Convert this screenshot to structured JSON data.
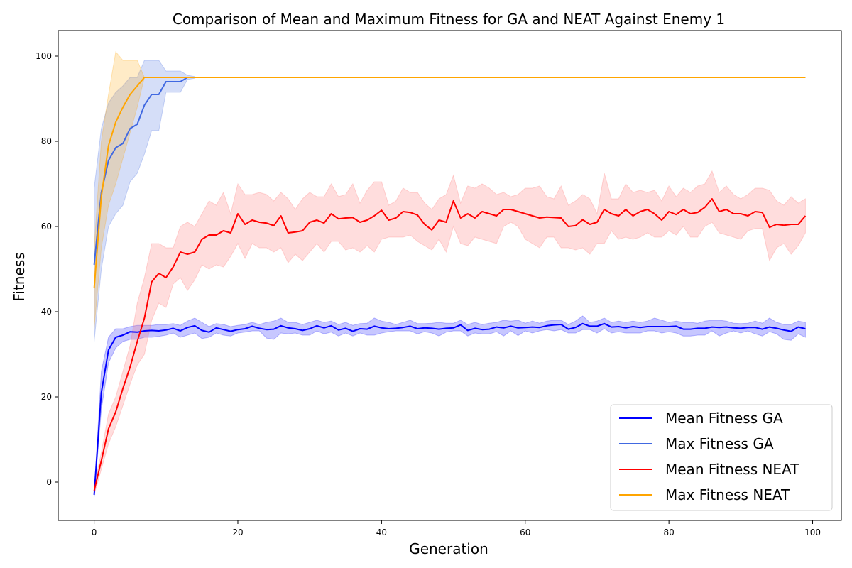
{
  "chart_data": {
    "type": "line",
    "title": "Comparison of Mean and Maximum Fitness for GA and NEAT Against Enemy 1",
    "xlabel": "Generation",
    "ylabel": "Fitness",
    "xlim": [
      -5,
      104
    ],
    "ylim": [
      -9,
      106
    ],
    "xticks": [
      0,
      20,
      40,
      60,
      80,
      100
    ],
    "yticks": [
      0,
      20,
      40,
      60,
      80,
      100
    ],
    "grid": false,
    "legend_position": "lower right",
    "series": [
      {
        "name": "Mean Fitness GA",
        "color": "#0000ff",
        "band_color": "#0000ff",
        "values": [
          -3,
          21,
          31,
          34,
          34.5,
          35.3,
          35.2,
          35.5,
          35.6,
          35.5,
          35.7,
          36.1,
          35.5,
          36.3,
          36.7,
          35.6,
          35.2,
          36.2,
          35.8,
          35.4,
          35.8,
          36,
          36.6,
          36.1,
          35.8,
          35.9,
          36.7,
          36.2,
          36,
          35.6,
          36,
          36.7,
          36.2,
          36.7,
          35.7,
          36.1,
          35.4,
          36,
          35.9,
          36.6,
          36.2,
          36,
          36.1,
          36.3,
          36.6,
          36,
          36.2,
          36.1,
          35.9,
          36.1,
          36.2,
          36.9,
          35.6,
          36.1,
          35.8,
          35.9,
          36.4,
          36.2,
          36.6,
          36.2,
          36.3,
          36.4,
          36.3,
          36.7,
          36.9,
          37,
          35.9,
          36.3,
          37.2,
          36.6,
          36.6,
          37.2,
          36.4,
          36.5,
          36.2,
          36.5,
          36.3,
          36.5,
          36.5,
          36.5,
          36.5,
          36.6,
          35.9,
          35.9,
          36.1,
          36.1,
          36.4,
          36.3,
          36.4,
          36.2,
          36.1,
          36.3,
          36.3,
          35.9,
          36.4,
          36.1,
          35.7,
          35.4,
          36.4,
          36
        ]
      },
      {
        "name": "Max Fitness GA",
        "color": "#4169e1",
        "band_color": "#4169e1",
        "values": [
          51,
          68,
          75.5,
          78.5,
          79.5,
          83,
          84,
          88.5,
          91,
          91,
          94,
          94,
          94,
          95,
          95,
          95,
          95,
          95,
          95,
          95,
          95,
          95,
          95,
          95,
          95,
          95,
          95,
          95,
          95,
          95,
          95,
          95,
          95,
          95,
          95,
          95,
          95,
          95,
          95,
          95,
          95,
          95,
          95,
          95,
          95,
          95,
          95,
          95,
          95,
          95,
          95,
          95,
          95,
          95,
          95,
          95,
          95,
          95,
          95,
          95,
          95,
          95,
          95,
          95,
          95,
          95,
          95,
          95,
          95,
          95,
          95,
          95,
          95,
          95,
          95,
          95,
          95,
          95,
          95,
          95,
          95,
          95,
          95,
          95,
          95,
          95,
          95,
          95,
          95,
          95,
          95,
          95,
          95,
          95,
          95,
          95,
          95,
          95,
          95,
          95
        ]
      },
      {
        "name": "Mean Fitness NEAT",
        "color": "#ff0000",
        "band_color": "#ff6666",
        "values": [
          -2,
          5,
          12.5,
          16.5,
          22,
          27,
          33,
          38.5,
          47,
          49,
          48,
          50.5,
          54,
          53.5,
          54,
          57,
          58,
          58,
          59,
          58.5,
          63,
          60.5,
          61.5,
          61,
          60.8,
          60.2,
          62.5,
          58.5,
          58.7,
          59,
          61,
          61.5,
          60.8,
          63,
          61.8,
          62,
          62.1,
          61,
          61.5,
          62.5,
          63.8,
          61.5,
          62,
          63.5,
          63.3,
          62.7,
          60.5,
          59.2,
          61.5,
          61,
          66,
          62,
          63,
          62,
          63.5,
          63,
          62.5,
          64,
          64,
          63.5,
          63,
          62.5,
          62,
          62.2,
          62.1,
          62,
          60,
          60.2,
          61.6,
          60.5,
          61,
          64,
          63,
          62.5,
          64,
          62.5,
          63.5,
          64,
          63,
          61.5,
          63.5,
          62.8,
          64,
          63,
          63.3,
          64.5,
          66.5,
          63.5,
          64,
          63,
          63,
          62.5,
          63.5,
          63.3,
          59.8,
          60.5,
          60.3,
          60.5,
          60.5,
          62.5
        ]
      },
      {
        "name": "Max Fitness NEAT",
        "color": "#ffa500",
        "band_color": "#ffa500",
        "values": [
          45.5,
          67,
          79,
          84.5,
          88,
          91,
          93,
          95,
          95,
          95,
          95,
          95,
          95,
          95,
          95,
          95,
          95,
          95,
          95,
          95,
          95,
          95,
          95,
          95,
          95,
          95,
          95,
          95,
          95,
          95,
          95,
          95,
          95,
          95,
          95,
          95,
          95,
          95,
          95,
          95,
          95,
          95,
          95,
          95,
          95,
          95,
          95,
          95,
          95,
          95,
          95,
          95,
          95,
          95,
          95,
          95,
          95,
          95,
          95,
          95,
          95,
          95,
          95,
          95,
          95,
          95,
          95,
          95,
          95,
          95,
          95,
          95,
          95,
          95,
          95,
          95,
          95,
          95,
          95,
          95,
          95,
          95,
          95,
          95,
          95,
          95,
          95,
          95,
          95,
          95,
          95,
          95,
          95,
          95,
          95,
          95,
          95,
          95,
          95,
          95
        ]
      }
    ],
    "bands": [
      {
        "series": "Mean Fitness GA",
        "lower": [
          -3.5,
          17,
          28,
          31.5,
          33,
          33.5,
          33.5,
          34,
          34,
          34.2,
          34.5,
          35,
          34,
          34.5,
          35,
          33.7,
          34,
          35,
          34.5,
          34.3,
          35,
          35.2,
          35.5,
          35.5,
          33.8,
          33.5,
          35,
          34.8,
          35,
          34.5,
          34.5,
          35.5,
          34.8,
          35.2,
          34.3,
          35,
          34.3,
          35,
          34.5,
          34.5,
          35,
          35.3,
          35.5,
          35.5,
          35.5,
          34.8,
          35.3,
          35,
          34.3,
          35.2,
          35.5,
          35.5,
          34.3,
          35,
          34.8,
          34.8,
          35.3,
          34.3,
          35.5,
          34.4,
          35.5,
          35,
          35.5,
          35.8,
          35.5,
          35.8,
          35,
          35,
          35.8,
          35.8,
          35,
          36,
          35,
          35.3,
          35,
          35,
          35,
          35.5,
          35.5,
          35,
          35.3,
          35,
          34.3,
          34.3,
          34.5,
          34.5,
          35.5,
          34.3,
          35,
          35.5,
          35,
          35.5,
          34.8,
          34.3,
          35.3,
          34.8,
          33.5,
          33.3,
          34.8,
          34
        ]
      },
      {
        "series": "Mean Fitness GA",
        "upper": [
          -2.5,
          26,
          34,
          36,
          36,
          36.5,
          36.8,
          36.8,
          36.8,
          37,
          37,
          37.2,
          36.8,
          37.8,
          38.5,
          37.5,
          36.5,
          37.2,
          37,
          36.5,
          36.8,
          37,
          37.5,
          37,
          37.5,
          37.8,
          38.5,
          37.5,
          37.5,
          37,
          37.5,
          38,
          37.5,
          37.8,
          37,
          37.5,
          36.8,
          37.2,
          37.3,
          38.5,
          37.8,
          37.5,
          37,
          37.5,
          38,
          37.2,
          37.2,
          37.3,
          37.5,
          37.3,
          37.3,
          38,
          37,
          37.5,
          37,
          37.3,
          37.5,
          38,
          37.8,
          38,
          37.3,
          37.8,
          37.3,
          37.8,
          38,
          38,
          37,
          37.8,
          39,
          37.5,
          37.8,
          38.5,
          37.5,
          37.8,
          37.5,
          37.8,
          37.5,
          37.8,
          38.5,
          38,
          37.5,
          37.8,
          37.5,
          37.5,
          37.3,
          37.8,
          38,
          38,
          37.8,
          37.3,
          37.2,
          37.3,
          37.8,
          37.3,
          38.5,
          37.5,
          37,
          37,
          37.8,
          37.5
        ]
      },
      {
        "series": "Max Fitness GA",
        "lower": [
          33,
          50,
          60,
          63,
          65,
          70.5,
          72.5,
          77,
          82.5,
          82.5,
          91.5,
          91.5,
          91.5,
          94.5,
          94.8
        ]
      },
      {
        "series": "Max Fitness GA",
        "upper": [
          69,
          83,
          89,
          91.5,
          93,
          95,
          95,
          99,
          99,
          99,
          96.5,
          96.5,
          96.5,
          95.5,
          95.2
        ]
      },
      {
        "series": "Mean Fitness NEAT",
        "lower": [
          -3,
          3,
          9,
          13,
          18,
          23,
          27.5,
          30,
          38,
          42,
          41,
          46.5,
          48,
          45,
          47.5,
          51,
          50,
          51,
          50.5,
          53,
          56,
          52.5,
          56,
          55,
          55,
          54,
          55,
          51.5,
          53.5,
          52,
          54,
          56,
          54,
          56.5,
          56.5,
          54.5,
          55,
          54,
          55.5,
          54,
          57,
          57.5,
          57.5,
          57.5,
          58,
          56.5,
          55.5,
          54.5,
          57,
          54,
          60,
          56,
          55.5,
          57.5,
          57,
          56.5,
          56,
          60,
          61,
          60,
          57,
          56,
          55,
          57.5,
          57.5,
          55,
          55,
          54.5,
          55,
          53.5,
          56,
          56,
          59,
          57,
          57.5,
          57,
          57.5,
          58.5,
          57.5,
          57.5,
          59,
          58,
          60,
          57.5,
          57.5,
          60,
          61,
          58.5,
          58,
          57.5,
          57,
          59,
          59.5,
          59.5,
          52,
          55,
          56,
          53.5,
          55.5,
          58.5
        ]
      },
      {
        "series": "Mean Fitness NEAT",
        "upper": [
          -1,
          7,
          16,
          20,
          26,
          32,
          42,
          48,
          56,
          56,
          55,
          55,
          60,
          61,
          60,
          63,
          66,
          65,
          68,
          63,
          70,
          67.5,
          67.5,
          68,
          67.5,
          66,
          68,
          66.5,
          64,
          66.5,
          68,
          67,
          67,
          70,
          67,
          67.5,
          70,
          65.5,
          68.5,
          70.5,
          70.5,
          65,
          66,
          69,
          68,
          68,
          65.5,
          64,
          66.5,
          67.5,
          72,
          65.5,
          69.5,
          69,
          70,
          69,
          67.5,
          68,
          67,
          67.5,
          69,
          69,
          69.5,
          67,
          66.5,
          69.5,
          65,
          66,
          67.5,
          66.5,
          63,
          72.5,
          66.5,
          66.5,
          70,
          68,
          68.5,
          68,
          68.5,
          66,
          69.5,
          67,
          69,
          68,
          69.5,
          70,
          73,
          68,
          69.5,
          67.5,
          66.5,
          67.5,
          69,
          69,
          68.5,
          66,
          65,
          67,
          65.5,
          66.5
        ]
      },
      {
        "series": "Max Fitness NEAT",
        "lower": [
          36,
          55,
          65,
          70,
          76,
          82,
          88,
          95
        ]
      },
      {
        "series": "Max Fitness NEAT",
        "upper": [
          55,
          80,
          91,
          101,
          99,
          99,
          99,
          95
        ]
      }
    ]
  }
}
